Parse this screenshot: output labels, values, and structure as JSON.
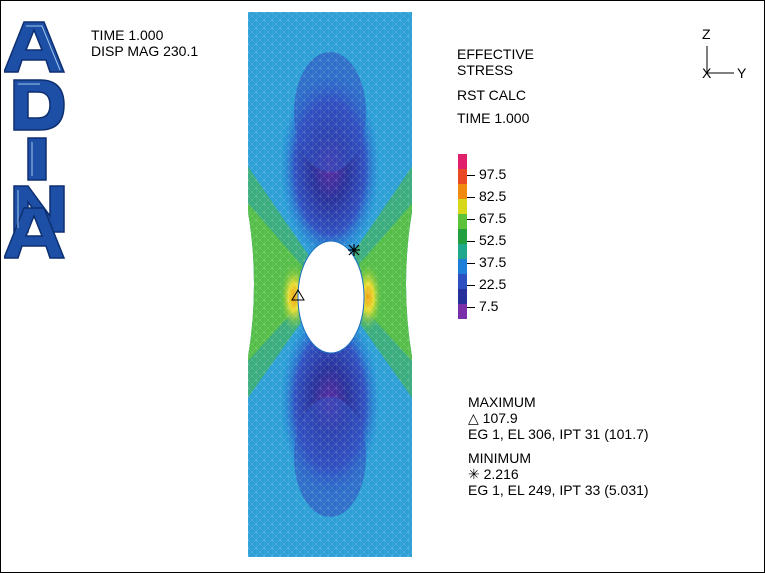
{
  "logo_text": "ADINA",
  "header": {
    "time": "TIME 1.000",
    "disp_mag": "DISP MAG 230.1"
  },
  "legend": {
    "title_line1": "EFFECTIVE",
    "title_line2": "STRESS",
    "calc": "RST CALC",
    "time": "TIME 1.000",
    "ticks": [
      "97.5",
      "82.5",
      "67.5",
      "52.5",
      "37.5",
      "22.5",
      "7.5"
    ],
    "colors": [
      "#e0206a",
      "#e94a25",
      "#f08a10",
      "#d8d81a",
      "#5bc23a",
      "#22a040",
      "#1fa88c",
      "#1d7fd8",
      "#2e4fc0",
      "#27309a",
      "#7a2fa8"
    ]
  },
  "axes": {
    "z": "Z",
    "y": "Y",
    "x": "X"
  },
  "stats": {
    "max_label": "MAXIMUM",
    "max_value": "107.9",
    "max_loc": "EG 1, EL 306, IPT 31 (101.7)",
    "min_label": "MINIMUM",
    "min_value": "2.216",
    "min_loc": "EG 1, EL 249, IPT 33 (5.031)"
  },
  "colors": {
    "base": "#2b9fd6",
    "dark": "#2c4fb5",
    "green": "#3cae6e",
    "yellow": "#e6dd30",
    "logo": "#1d4fa6"
  }
}
